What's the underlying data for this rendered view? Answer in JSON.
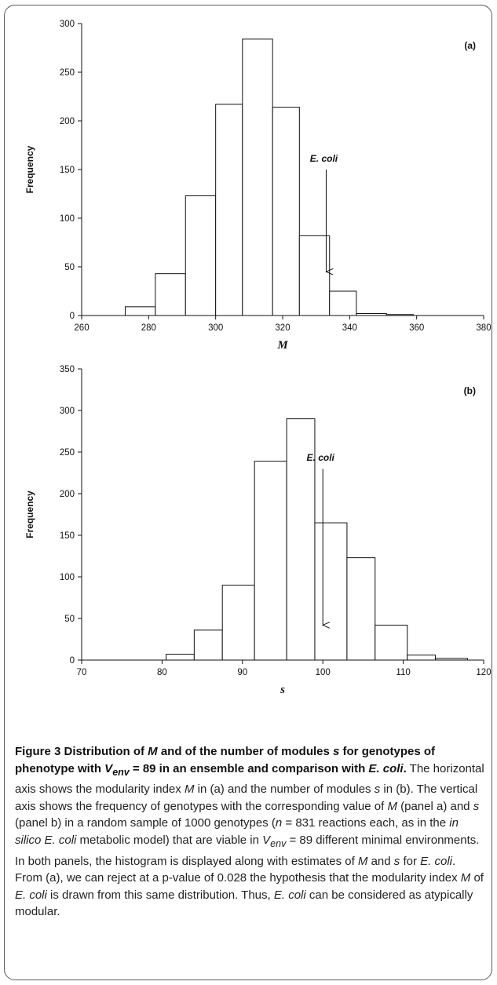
{
  "chart_data": [
    {
      "type": "bar",
      "panel_label": "(a)",
      "xlabel": "M",
      "ylabel": "Frequency",
      "xlim": [
        260,
        380
      ],
      "ylim": [
        0,
        300
      ],
      "xticks": [
        260,
        280,
        300,
        320,
        340,
        360,
        380
      ],
      "yticks": [
        0,
        50,
        100,
        150,
        200,
        250,
        300
      ],
      "bins": [
        {
          "x0": 273,
          "x1": 282,
          "value": 9
        },
        {
          "x0": 282,
          "x1": 291,
          "value": 43
        },
        {
          "x0": 291,
          "x1": 300,
          "value": 123
        },
        {
          "x0": 300,
          "x1": 308,
          "value": 217
        },
        {
          "x0": 308,
          "x1": 317,
          "value": 284
        },
        {
          "x0": 317,
          "x1": 325,
          "value": 214
        },
        {
          "x0": 325,
          "x1": 334,
          "value": 82
        },
        {
          "x0": 334,
          "x1": 342,
          "value": 25
        },
        {
          "x0": 342,
          "x1": 351,
          "value": 2
        },
        {
          "x0": 351,
          "x1": 359,
          "value": 1
        }
      ],
      "annotation": {
        "text": "E. coli",
        "x": 333,
        "y_top": 150,
        "y_bottom": 45
      }
    },
    {
      "type": "bar",
      "panel_label": "(b)",
      "xlabel": "s",
      "ylabel": "Frequency",
      "xlim": [
        70,
        120
      ],
      "ylim": [
        0,
        350
      ],
      "xticks": [
        70,
        80,
        90,
        100,
        110,
        120
      ],
      "yticks": [
        0,
        50,
        100,
        150,
        200,
        250,
        300,
        350
      ],
      "bins": [
        {
          "x0": 80.5,
          "x1": 84,
          "value": 7
        },
        {
          "x0": 84,
          "x1": 87.5,
          "value": 36
        },
        {
          "x0": 87.5,
          "x1": 91.5,
          "value": 90
        },
        {
          "x0": 91.5,
          "x1": 95.5,
          "value": 239
        },
        {
          "x0": 95.5,
          "x1": 99,
          "value": 290
        },
        {
          "x0": 99,
          "x1": 103,
          "value": 165
        },
        {
          "x0": 103,
          "x1": 106.5,
          "value": 123
        },
        {
          "x0": 106.5,
          "x1": 110.5,
          "value": 42
        },
        {
          "x0": 110.5,
          "x1": 114,
          "value": 6
        },
        {
          "x0": 114,
          "x1": 118,
          "value": 2
        }
      ],
      "annotation": {
        "text": "E. coli",
        "x": 100,
        "y_top": 230,
        "y_bottom": 42
      }
    }
  ],
  "caption": {
    "title_runs": [
      {
        "t": "Figure 3 Distribution of "
      },
      {
        "t": "M",
        "i": true
      },
      {
        "t": " and of the number of modules "
      },
      {
        "t": "s",
        "i": true
      },
      {
        "t": " for genotypes of phenotype with "
      },
      {
        "t": "V",
        "i": true
      },
      {
        "t": "env",
        "i": true,
        "sub": true
      },
      {
        "t": " = 89 in an ensemble and comparison with "
      },
      {
        "t": "E. coli",
        "i": true
      },
      {
        "t": "."
      }
    ],
    "body_runs": [
      {
        "t": " The horizontal axis shows the modularity index "
      },
      {
        "t": "M",
        "i": true
      },
      {
        "t": " in (a) and the number of modules "
      },
      {
        "t": "s",
        "i": true
      },
      {
        "t": " in (b). The vertical axis shows the frequency of genotypes with the corresponding value of "
      },
      {
        "t": "M",
        "i": true
      },
      {
        "t": " (panel a) and "
      },
      {
        "t": "s",
        "i": true
      },
      {
        "t": " (panel b) in a random sample of 1000 genotypes ("
      },
      {
        "t": "n",
        "i": true
      },
      {
        "t": " = 831 reactions each, as in the "
      },
      {
        "t": "in silico E. coli",
        "i": true
      },
      {
        "t": " metabolic model) that are viable in "
      },
      {
        "t": "V",
        "i": true
      },
      {
        "t": "env",
        "i": true,
        "sub": true
      },
      {
        "t": " = 89 different minimal environments. In both panels, the histogram is displayed along with estimates of "
      },
      {
        "t": "M",
        "i": true
      },
      {
        "t": " and "
      },
      {
        "t": "s",
        "i": true
      },
      {
        "t": " for "
      },
      {
        "t": "E. coli",
        "i": true
      },
      {
        "t": ". From (a), we can reject at a p-value of 0.028 the hypothesis that the modularity index "
      },
      {
        "t": "M",
        "i": true
      },
      {
        "t": " of "
      },
      {
        "t": "E. coli",
        "i": true
      },
      {
        "t": " is drawn from this same distribution. Thus, "
      },
      {
        "t": "E. coli",
        "i": true
      },
      {
        "t": " can be considered as atypically modular."
      }
    ]
  }
}
